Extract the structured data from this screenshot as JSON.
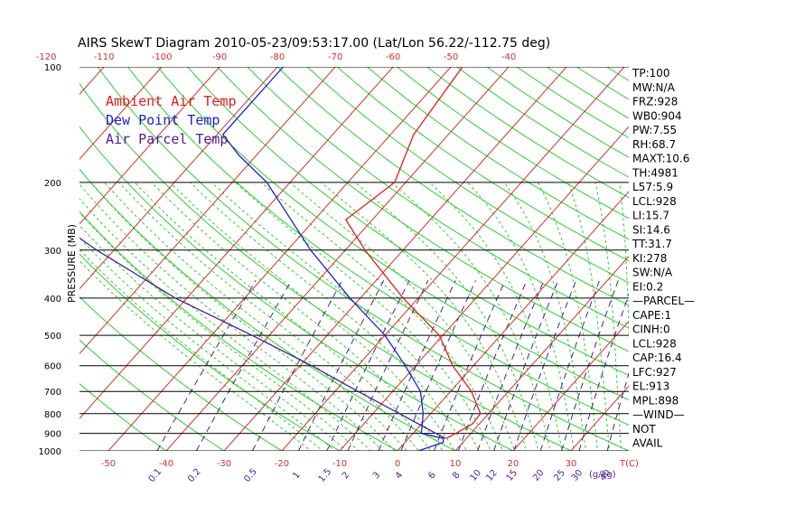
{
  "chart_data": {
    "type": "line",
    "title": "AIRS SkewT Diagram 2010-05-23/09:53:17.00 (Lat/Lon 56.22/-112.75 deg)",
    "ylabel": "PRESSURE (MB)",
    "xlabel": "T(C)",
    "mixing_ratio_label": "(g/kg)",
    "y_scale": "log-pressure",
    "ylim": [
      1000,
      100
    ],
    "xlim_bottom_at_1000mb": [
      -55,
      40
    ],
    "pressure_ticks": [
      100,
      200,
      300,
      400,
      500,
      600,
      700,
      800,
      900,
      1000
    ],
    "bottom_temperature_ticks": [
      -50,
      -40,
      -30,
      -20,
      -10,
      0,
      10,
      20,
      30
    ],
    "top_temperature_ticks": [
      -120,
      -110,
      -100,
      -90,
      -80,
      -70,
      -60,
      -50,
      -40
    ],
    "mixing_ratio_ticks": [
      "0.1",
      "0.2",
      "0.5",
      "1",
      "1.5",
      "2",
      "3",
      "4",
      "6",
      "8",
      "10",
      "12",
      "15",
      "20",
      "25",
      "30",
      "40"
    ],
    "legend": [
      {
        "label": "Ambient Air Temp",
        "color": "#e41a1c"
      },
      {
        "label": "Dew Point Temp",
        "color": "#1e22c8"
      },
      {
        "label": "Air Parcel Temp",
        "color": "#4b1e96"
      }
    ],
    "series": [
      {
        "name": "Ambient Air Temp",
        "color": "#e41a1c",
        "points": [
          {
            "p": 928,
            "t": 6.5
          },
          {
            "p": 900,
            "t": 7.4
          },
          {
            "p": 850,
            "t": 8.8
          },
          {
            "p": 800,
            "t": 8.6
          },
          {
            "p": 700,
            "t": 3.6
          },
          {
            "p": 600,
            "t": -3.6
          },
          {
            "p": 500,
            "t": -10.6
          },
          {
            "p": 400,
            "t": -22.6
          },
          {
            "p": 300,
            "t": -36.6
          },
          {
            "p": 250,
            "t": -44.6
          },
          {
            "p": 200,
            "t": -41.9
          },
          {
            "p": 150,
            "t": -46
          },
          {
            "p": 100,
            "t": -48
          }
        ]
      },
      {
        "name": "Dew Point Temp",
        "color": "#1e22c8",
        "points": [
          {
            "p": 1000,
            "t": 3.6
          },
          {
            "p": 950,
            "t": 6.6
          },
          {
            "p": 928,
            "t": 6
          },
          {
            "p": 900,
            "t": 1.4
          },
          {
            "p": 850,
            "t": 0.1
          },
          {
            "p": 800,
            "t": -1.3
          },
          {
            "p": 700,
            "t": -5.2
          },
          {
            "p": 600,
            "t": -11.8
          },
          {
            "p": 500,
            "t": -20
          },
          {
            "p": 400,
            "t": -31.8
          },
          {
            "p": 300,
            "t": -46
          },
          {
            "p": 200,
            "t": -64
          },
          {
            "p": 170,
            "t": -73
          },
          {
            "p": 150,
            "t": -79
          },
          {
            "p": 100,
            "t": -79
          }
        ]
      },
      {
        "name": "Air Parcel Temp",
        "color": "#4b1e96",
        "points": [
          {
            "p": 928,
            "t": 6.4
          },
          {
            "p": 900,
            "t": 3.9
          },
          {
            "p": 850,
            "t": -0.6
          },
          {
            "p": 800,
            "t": -5.4
          },
          {
            "p": 700,
            "t": -16
          },
          {
            "p": 600,
            "t": -28
          },
          {
            "p": 500,
            "t": -43
          },
          {
            "p": 400,
            "t": -62
          },
          {
            "p": 300,
            "t": -83
          },
          {
            "p": 200,
            "t": -110
          },
          {
            "p": 150,
            "t": -128
          },
          {
            "p": 130,
            "t": -137
          }
        ]
      }
    ],
    "indices": [
      "TP:100",
      "MW:N/A",
      "FRZ:928",
      "WB0:904",
      "PW:7.55",
      "RH:68.7",
      "MAXT:10.6",
      "TH:4981",
      "L57:5.9",
      "LCL:928",
      "LI:15.7",
      "SI:14.6",
      "TT:31.7",
      "KI:278",
      "SW:N/A",
      "EI:0.2",
      "—PARCEL—",
      "CAPE:1",
      "CINH:0",
      "LCL:928",
      "CAP:16.4",
      "LFC:927",
      "EL:913",
      "MPL:898",
      "—WIND—",
      "NOT",
      "AVAIL"
    ],
    "colors": {
      "isotherm": "#d03030",
      "dry_adiabat": "#30cc30",
      "moist_adiabat": "#30cc30",
      "mixing_ratio": "#4b1e96",
      "isobar": "#000000"
    }
  }
}
